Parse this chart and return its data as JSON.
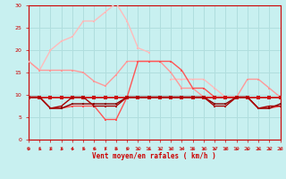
{
  "xlabel": "Vent moyen/en rafales ( km/h )",
  "xlim": [
    0,
    23
  ],
  "ylim": [
    0,
    30
  ],
  "yticks": [
    0,
    5,
    10,
    15,
    20,
    25,
    30
  ],
  "xticks": [
    0,
    1,
    2,
    3,
    4,
    5,
    6,
    7,
    8,
    9,
    10,
    11,
    12,
    13,
    14,
    15,
    16,
    17,
    18,
    19,
    20,
    21,
    22,
    23
  ],
  "bg_color": "#c8f0f0",
  "grid_color": "#b0dede",
  "tick_label_color": "#cc0000",
  "xlabel_color": "#cc0000",
  "axis_color": "#cc0000",
  "arrow_color": "#cc2222",
  "line_configs": [
    {
      "x": [
        0,
        1,
        2,
        3,
        4,
        5,
        6,
        7,
        8,
        9,
        10,
        11,
        12,
        13,
        14,
        15,
        16,
        17,
        18,
        19,
        20,
        21,
        22,
        23
      ],
      "y": [
        17.5,
        15.5,
        20.0,
        22.0,
        23.0,
        26.5,
        26.5,
        28.5,
        30.5,
        26.5,
        20.5,
        19.5,
        null,
        13.5,
        13.5,
        13.5,
        13.5,
        11.5,
        9.5,
        9.5,
        null,
        null,
        null,
        null
      ],
      "color": "#ffbbbb",
      "lw": 1.0,
      "marker": "s",
      "ms": 2.0
    },
    {
      "x": [
        0,
        1,
        2,
        3,
        4,
        5,
        6,
        7,
        8,
        9,
        10,
        11,
        12,
        13,
        14,
        15,
        16,
        17,
        18,
        19,
        20,
        21,
        22,
        23
      ],
      "y": [
        17.5,
        15.5,
        15.5,
        15.5,
        15.5,
        15.0,
        13.0,
        12.0,
        14.5,
        17.5,
        17.5,
        17.5,
        17.5,
        15.0,
        11.5,
        11.5,
        9.5,
        9.5,
        9.5,
        9.5,
        13.5,
        13.5,
        11.5,
        9.5
      ],
      "color": "#ff9999",
      "lw": 1.0,
      "marker": "s",
      "ms": 2.0
    },
    {
      "x": [
        0,
        1,
        2,
        3,
        4,
        5,
        6,
        7,
        8,
        9,
        10,
        11,
        12,
        13,
        14,
        15,
        16,
        17,
        18,
        19,
        20,
        21,
        22,
        23
      ],
      "y": [
        9.5,
        9.5,
        7.0,
        7.0,
        7.5,
        7.5,
        7.5,
        4.5,
        4.5,
        9.5,
        17.5,
        17.5,
        17.5,
        17.5,
        15.5,
        11.5,
        11.5,
        9.5,
        9.5,
        9.5,
        9.5,
        7.0,
        7.0,
        7.5
      ],
      "color": "#ff5555",
      "lw": 1.0,
      "marker": "s",
      "ms": 2.0
    },
    {
      "x": [
        0,
        1,
        2,
        3,
        4,
        5,
        6,
        7,
        8,
        9,
        10,
        11,
        12,
        13,
        14,
        15,
        16,
        17,
        18,
        19,
        20,
        21,
        22,
        23
      ],
      "y": [
        9.5,
        9.5,
        9.5,
        9.5,
        9.5,
        9.5,
        9.5,
        9.5,
        9.5,
        9.5,
        9.5,
        9.5,
        9.5,
        9.5,
        9.5,
        9.5,
        9.5,
        9.5,
        9.5,
        9.5,
        9.5,
        9.5,
        9.5,
        9.5
      ],
      "color": "#cc1111",
      "lw": 1.3,
      "marker": "s",
      "ms": 2.2
    },
    {
      "x": [
        0,
        1,
        2,
        3,
        4,
        5,
        6,
        7,
        8,
        9,
        10,
        11,
        12,
        13,
        14,
        15,
        16,
        17,
        18,
        19,
        20,
        21,
        22,
        23
      ],
      "y": [
        9.5,
        9.5,
        7.0,
        7.0,
        8.0,
        8.0,
        8.0,
        8.0,
        8.0,
        9.5,
        9.5,
        9.5,
        9.5,
        9.5,
        9.5,
        9.5,
        9.5,
        8.0,
        8.0,
        9.5,
        9.5,
        7.0,
        7.0,
        8.0
      ],
      "color": "#880000",
      "lw": 1.0,
      "marker": "s",
      "ms": 1.8
    },
    {
      "x": [
        0,
        1,
        2,
        3,
        4,
        5,
        6,
        7,
        8,
        9,
        10,
        11,
        12,
        13,
        14,
        15,
        16,
        17,
        18,
        19,
        20,
        21,
        22,
        23
      ],
      "y": [
        9.5,
        9.5,
        7.0,
        7.5,
        9.5,
        9.5,
        7.5,
        7.5,
        7.5,
        9.5,
        9.5,
        9.5,
        9.5,
        9.5,
        9.5,
        9.5,
        9.5,
        7.5,
        7.5,
        9.5,
        9.5,
        7.0,
        7.5,
        7.5
      ],
      "color": "#aa0000",
      "lw": 1.0,
      "marker": "s",
      "ms": 1.8
    }
  ]
}
